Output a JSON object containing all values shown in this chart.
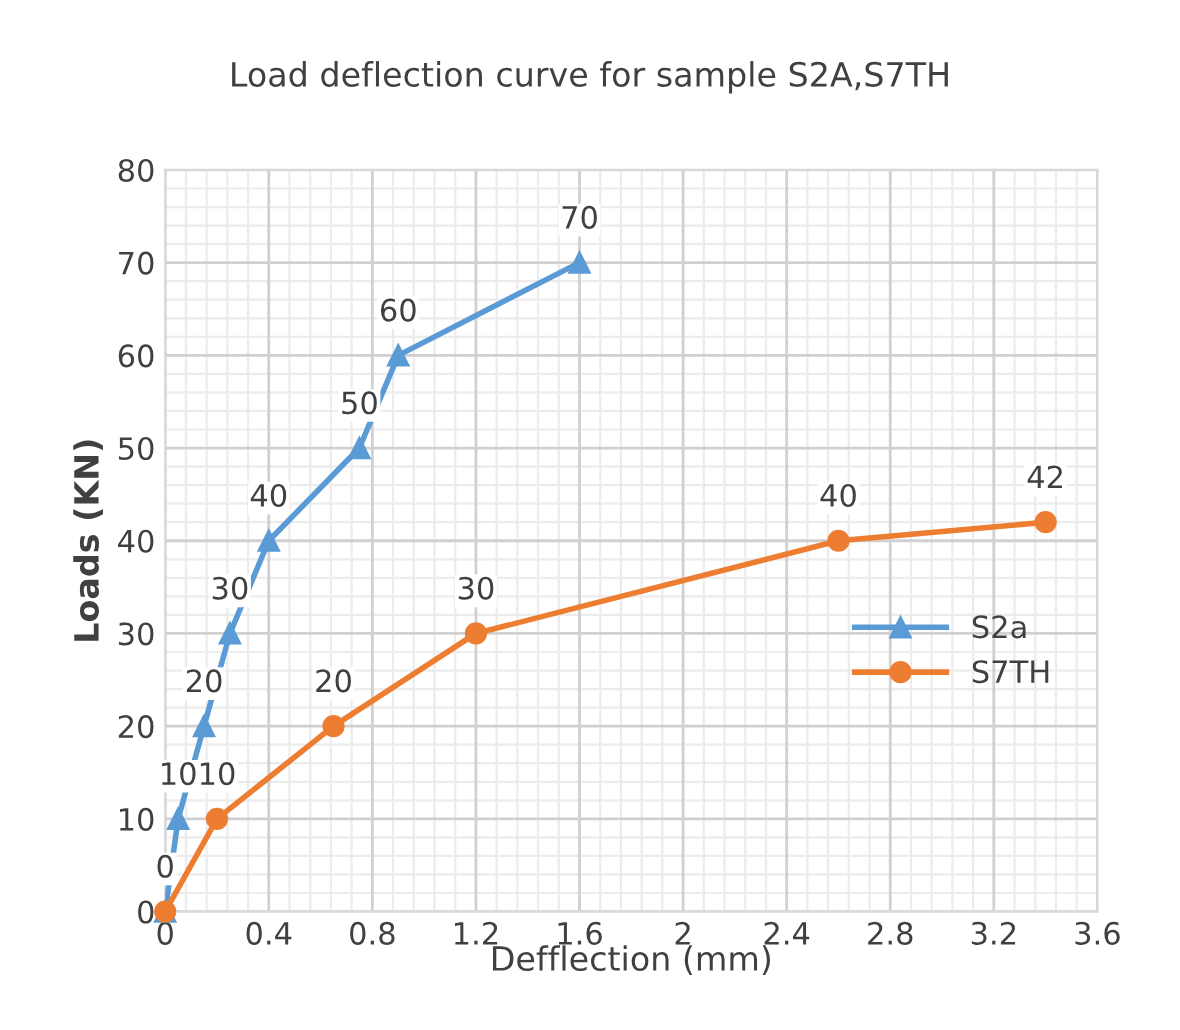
{
  "chart_data": {
    "type": "line",
    "title": "Load deflection curve for sample S2A,S7TH",
    "xlabel": "Defflection (mm)",
    "ylabel": "Loads (KN)",
    "xlim": [
      0,
      3.6
    ],
    "xticks": [
      0,
      0.4,
      0.8,
      1.2,
      1.6,
      2,
      2.4,
      2.8,
      3.2,
      3.6
    ],
    "ylim": [
      0,
      80
    ],
    "yticks": [
      0,
      10,
      20,
      30,
      40,
      50,
      60,
      70,
      80
    ],
    "grid": true,
    "legend": "right",
    "line_style": "solid",
    "series": [
      {
        "name": "S2a",
        "color": "#5b9bd5",
        "marker": "triangle",
        "x": [
          0,
          0.05,
          0.15,
          0.25,
          0.4,
          0.75,
          0.9,
          1.6
        ],
        "values": [
          0,
          10,
          20,
          30,
          40,
          50,
          60,
          70
        ],
        "value_labels": [
          "0",
          "10",
          "20",
          "30",
          "40",
          "50",
          "60",
          "70"
        ]
      },
      {
        "name": "S7TH",
        "color": "#ed7d31",
        "marker": "circle",
        "x": [
          0,
          0.2,
          0.65,
          1.2,
          2.6,
          3.4
        ],
        "values": [
          0,
          10,
          20,
          30,
          40,
          42
        ],
        "value_labels": [
          null,
          "10",
          "20",
          "30",
          "40",
          "42"
        ]
      }
    ]
  }
}
